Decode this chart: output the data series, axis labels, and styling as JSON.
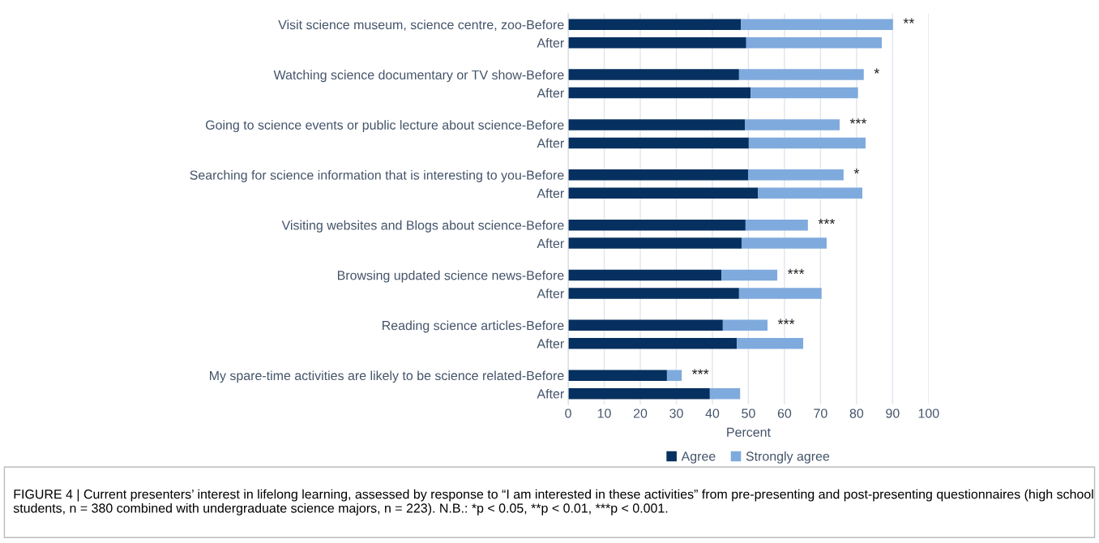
{
  "chart_data": {
    "type": "bar",
    "orientation": "horizontal",
    "stacked": true,
    "xlabel": "Percent",
    "categories": [
      "Visit science museum, science centre, zoo-Before",
      "After",
      "Watching science documentary or TV show-Before",
      "After",
      "Going to science events or public lecture about science-Before",
      "After",
      "Searching for science information that is interesting to you-Before",
      "After",
      "Visiting websites and Blogs about science-Before",
      "After",
      "Browsing updated science news-Before",
      "After",
      "Reading science articles-Before",
      "After",
      "My spare-time activities are likely to be science related-Before",
      "After"
    ],
    "series": [
      {
        "name": "Agree",
        "color": "#06305f",
        "values": [
          47.9,
          49.4,
          47.4,
          50.6,
          49,
          50.1,
          49.9,
          52.6,
          49.2,
          48.1,
          42.5,
          47.4,
          42.9,
          46.8,
          27.4,
          39.3
        ]
      },
      {
        "name": "Strongly agree",
        "color": "#7faadd",
        "values": [
          42.2,
          37.6,
          34.6,
          29.8,
          26.3,
          32.4,
          26.5,
          29,
          17.3,
          23.6,
          15.5,
          22.9,
          12.4,
          18.4,
          4.1,
          8.4
        ]
      }
    ],
    "xlim": [
      0,
      100
    ],
    "xticks": [
      0,
      10,
      20,
      30,
      40,
      50,
      60,
      70,
      80,
      90,
      100
    ],
    "grid": "x",
    "legend": "bottom",
    "annotations": [
      {
        "text": "**",
        "x": 90.1,
        "y": "Visit science museum, science centre, zoo-Before"
      },
      {
        "text": "*",
        "x": 82,
        "y": "Watching science documentary or TV show-Before"
      },
      {
        "text": "***",
        "x": 75.3,
        "y": "Going to science events or public lecture about science-Before"
      },
      {
        "text": "*",
        "x": 76.4,
        "y": "Searching for science information that is interesting to you-Before"
      },
      {
        "text": "***",
        "x": 66.5,
        "y": "Visiting websites and Blogs about science-Before"
      },
      {
        "text": "***",
        "x": 58,
        "y": "Browsing updated science news-Before"
      },
      {
        "text": "***",
        "x": 55.3,
        "y": "Reading science articles-Before"
      },
      {
        "text": "***",
        "x": 31.5,
        "y": "My spare-time activities are likely to be science related-Before"
      },
      "FIGURE 4 | Current presenters’ interest in lifelong learning, assessed by response to “I am interested in these activities” from pre-presenting and post-presenting questionnaires (high school students, n = 380 combined with undergraduate science majors, n = 223). N.B.: *p < 0.05, **p < 0.01, ***p < 0.001."
    ]
  }
}
